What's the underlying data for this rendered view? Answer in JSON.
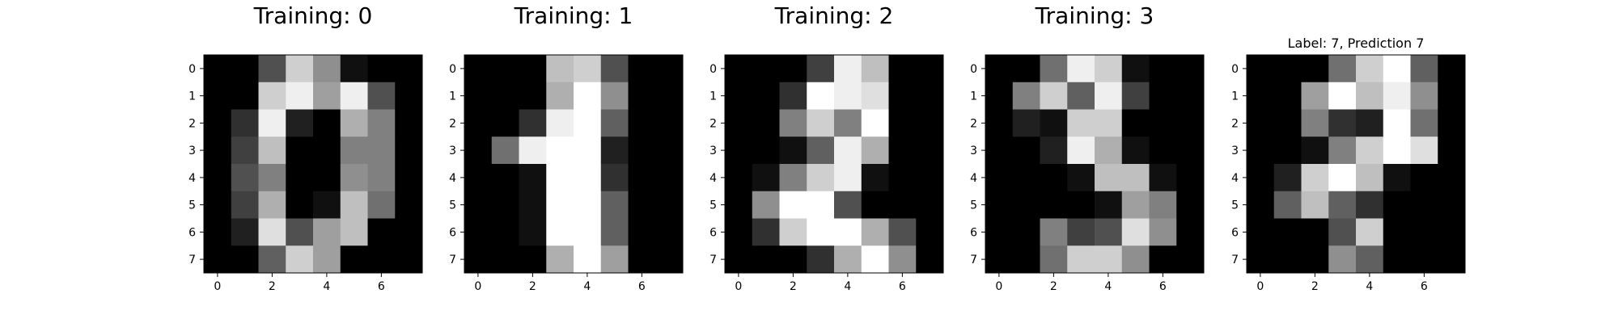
{
  "chart_data": [
    {
      "type": "heatmap",
      "title": "Training: 0",
      "cmap": "gray",
      "vmin": 0,
      "vmax": 16,
      "xticks": [
        0,
        2,
        4,
        6
      ],
      "yticks": [
        0,
        1,
        2,
        3,
        4,
        5,
        6,
        7
      ],
      "xlim": [
        -0.5,
        7.5
      ],
      "ylim": [
        7.5,
        -0.5
      ],
      "values": [
        [
          0,
          0,
          5,
          13,
          9,
          1,
          0,
          0
        ],
        [
          0,
          0,
          13,
          15,
          10,
          15,
          5,
          0
        ],
        [
          0,
          3,
          15,
          2,
          0,
          11,
          8,
          0
        ],
        [
          0,
          4,
          12,
          0,
          0,
          8,
          8,
          0
        ],
        [
          0,
          5,
          8,
          0,
          0,
          9,
          8,
          0
        ],
        [
          0,
          4,
          11,
          0,
          1,
          12,
          7,
          0
        ],
        [
          0,
          2,
          14,
          5,
          10,
          12,
          0,
          0
        ],
        [
          0,
          0,
          6,
          13,
          10,
          0,
          0,
          0
        ]
      ]
    },
    {
      "type": "heatmap",
      "title": "Training: 1",
      "cmap": "gray",
      "vmin": 0,
      "vmax": 16,
      "xticks": [
        0,
        2,
        4,
        6
      ],
      "yticks": [
        0,
        1,
        2,
        3,
        4,
        5,
        6,
        7
      ],
      "xlim": [
        -0.5,
        7.5
      ],
      "ylim": [
        7.5,
        -0.5
      ],
      "values": [
        [
          0,
          0,
          0,
          12,
          13,
          5,
          0,
          0
        ],
        [
          0,
          0,
          0,
          11,
          16,
          9,
          0,
          0
        ],
        [
          0,
          0,
          3,
          15,
          16,
          6,
          0,
          0
        ],
        [
          0,
          7,
          15,
          16,
          16,
          2,
          0,
          0
        ],
        [
          0,
          0,
          1,
          16,
          16,
          3,
          0,
          0
        ],
        [
          0,
          0,
          1,
          16,
          16,
          6,
          0,
          0
        ],
        [
          0,
          0,
          1,
          16,
          16,
          6,
          0,
          0
        ],
        [
          0,
          0,
          0,
          11,
          16,
          10,
          0,
          0
        ]
      ]
    },
    {
      "type": "heatmap",
      "title": "Training: 2",
      "cmap": "gray",
      "vmin": 0,
      "vmax": 16,
      "xticks": [
        0,
        2,
        4,
        6
      ],
      "yticks": [
        0,
        1,
        2,
        3,
        4,
        5,
        6,
        7
      ],
      "xlim": [
        -0.5,
        7.5
      ],
      "ylim": [
        7.5,
        -0.5
      ],
      "values": [
        [
          0,
          0,
          0,
          4,
          15,
          12,
          0,
          0
        ],
        [
          0,
          0,
          3,
          16,
          15,
          14,
          0,
          0
        ],
        [
          0,
          0,
          8,
          13,
          8,
          16,
          0,
          0
        ],
        [
          0,
          0,
          1,
          6,
          15,
          11,
          0,
          0
        ],
        [
          0,
          1,
          8,
          13,
          15,
          1,
          0,
          0
        ],
        [
          0,
          9,
          16,
          16,
          5,
          0,
          0,
          0
        ],
        [
          0,
          3,
          13,
          16,
          16,
          11,
          5,
          0
        ],
        [
          0,
          0,
          0,
          3,
          11,
          16,
          9,
          0
        ]
      ]
    },
    {
      "type": "heatmap",
      "title": "Training: 3",
      "cmap": "gray",
      "vmin": 0,
      "vmax": 16,
      "xticks": [
        0,
        2,
        4,
        6
      ],
      "yticks": [
        0,
        1,
        2,
        3,
        4,
        5,
        6,
        7
      ],
      "xlim": [
        -0.5,
        7.5
      ],
      "ylim": [
        7.5,
        -0.5
      ],
      "values": [
        [
          0,
          0,
          7,
          15,
          13,
          1,
          0,
          0
        ],
        [
          0,
          8,
          13,
          6,
          15,
          4,
          0,
          0
        ],
        [
          0,
          2,
          1,
          13,
          13,
          0,
          0,
          0
        ],
        [
          0,
          0,
          2,
          15,
          11,
          1,
          0,
          0
        ],
        [
          0,
          0,
          0,
          1,
          12,
          12,
          1,
          0
        ],
        [
          0,
          0,
          0,
          0,
          1,
          10,
          8,
          0
        ],
        [
          0,
          0,
          8,
          4,
          5,
          14,
          9,
          0
        ],
        [
          0,
          0,
          7,
          13,
          13,
          9,
          0,
          0
        ]
      ]
    },
    {
      "type": "heatmap",
      "title": "Label: 7, Prediction 7",
      "cmap": "gray",
      "vmin": 0,
      "vmax": 16,
      "xticks": [
        0,
        2,
        4,
        6
      ],
      "yticks": [
        0,
        1,
        2,
        3,
        4,
        5,
        6,
        7
      ],
      "xlim": [
        -0.5,
        7.5
      ],
      "ylim": [
        7.5,
        -0.5
      ],
      "values": [
        [
          0,
          0,
          0,
          7,
          13,
          16,
          6,
          0
        ],
        [
          0,
          0,
          10,
          16,
          12,
          15,
          9,
          0
        ],
        [
          0,
          0,
          8,
          3,
          2,
          16,
          7,
          0
        ],
        [
          0,
          0,
          1,
          8,
          13,
          16,
          14,
          0
        ],
        [
          0,
          2,
          13,
          16,
          12,
          1,
          0,
          0
        ],
        [
          0,
          6,
          12,
          6,
          3,
          0,
          0,
          0
        ],
        [
          0,
          0,
          0,
          5,
          13,
          0,
          0,
          0
        ],
        [
          0,
          0,
          0,
          9,
          6,
          0,
          0,
          0
        ]
      ]
    }
  ]
}
